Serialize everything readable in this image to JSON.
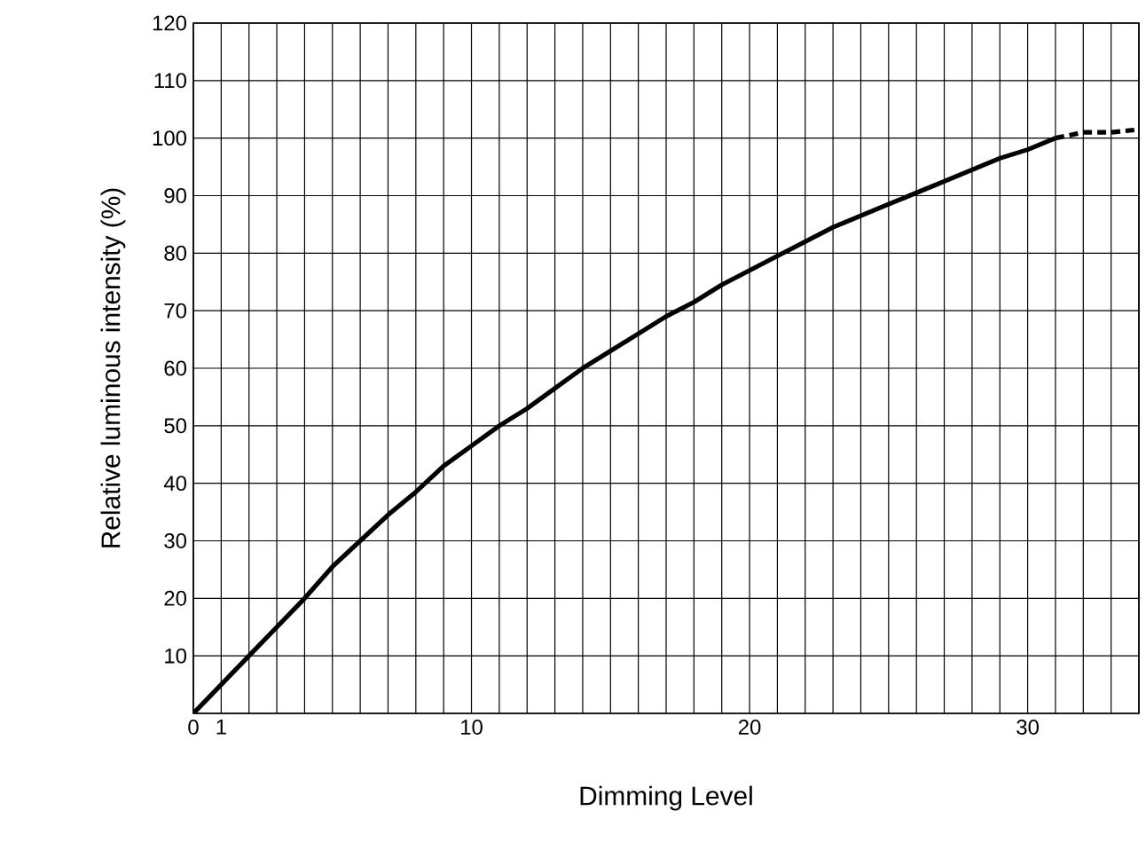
{
  "chart_data": {
    "type": "line",
    "xlabel": "Dimming Level",
    "ylabel": "Relative luminous intensity (%)",
    "series": [
      {
        "color": "#000000",
        "x": [
          0,
          1,
          2,
          3,
          4,
          5,
          6,
          7,
          8,
          9,
          10,
          11,
          12,
          13,
          14,
          15,
          16,
          17,
          18,
          19,
          20,
          21,
          22,
          23,
          24,
          25,
          26,
          27,
          28,
          29,
          30,
          31
        ],
        "values": [
          0,
          5,
          10,
          15,
          20,
          25.5,
          30,
          34.5,
          38.5,
          43,
          46.5,
          50,
          53,
          56.5,
          60,
          63,
          66,
          69,
          71.5,
          74.5,
          77,
          79.5,
          82,
          84.5,
          86.5,
          88.5,
          90.5,
          92.5,
          94.5,
          96.5,
          98,
          100
        ]
      },
      {
        "color": "#000000",
        "line_style": "dashed",
        "x": [
          31,
          32,
          33,
          34
        ],
        "values": [
          100,
          101,
          101,
          101.5
        ]
      }
    ],
    "xlim": [
      0,
      34
    ],
    "ylim": [
      0,
      120
    ],
    "xticks": [
      0,
      1,
      {
        "value": 2,
        "label": null
      },
      {
        "value": 3,
        "label": null
      },
      {
        "value": 4,
        "label": null
      },
      {
        "value": 5,
        "label": null
      },
      {
        "value": 6,
        "label": null
      },
      {
        "value": 7,
        "label": null
      },
      {
        "value": 8,
        "label": null
      },
      {
        "value": 9,
        "label": null
      },
      10,
      {
        "value": 11,
        "label": null
      },
      {
        "value": 12,
        "label": null
      },
      {
        "value": 13,
        "label": null
      },
      {
        "value": 14,
        "label": null
      },
      {
        "value": 15,
        "label": null
      },
      {
        "value": 16,
        "label": null
      },
      {
        "value": 17,
        "label": null
      },
      {
        "value": 18,
        "label": null
      },
      {
        "value": 19,
        "label": null
      },
      20,
      {
        "value": 21,
        "label": null
      },
      {
        "value": 22,
        "label": null
      },
      {
        "value": 23,
        "label": null
      },
      {
        "value": 24,
        "label": null
      },
      {
        "value": 25,
        "label": null
      },
      {
        "value": 26,
        "label": null
      },
      {
        "value": 27,
        "label": null
      },
      {
        "value": 28,
        "label": null
      },
      {
        "value": 29,
        "label": null
      },
      30,
      {
        "value": 31,
        "label": null
      },
      {
        "value": 32,
        "label": null
      },
      {
        "value": 33,
        "label": null
      },
      {
        "value": 34,
        "label": null
      }
    ],
    "yticks": [
      {
        "value": 0,
        "label": null
      },
      10,
      20,
      30,
      40,
      50,
      60,
      70,
      80,
      90,
      100,
      110,
      120
    ],
    "grid": true,
    "marker": "none",
    "line_style": "solid"
  }
}
